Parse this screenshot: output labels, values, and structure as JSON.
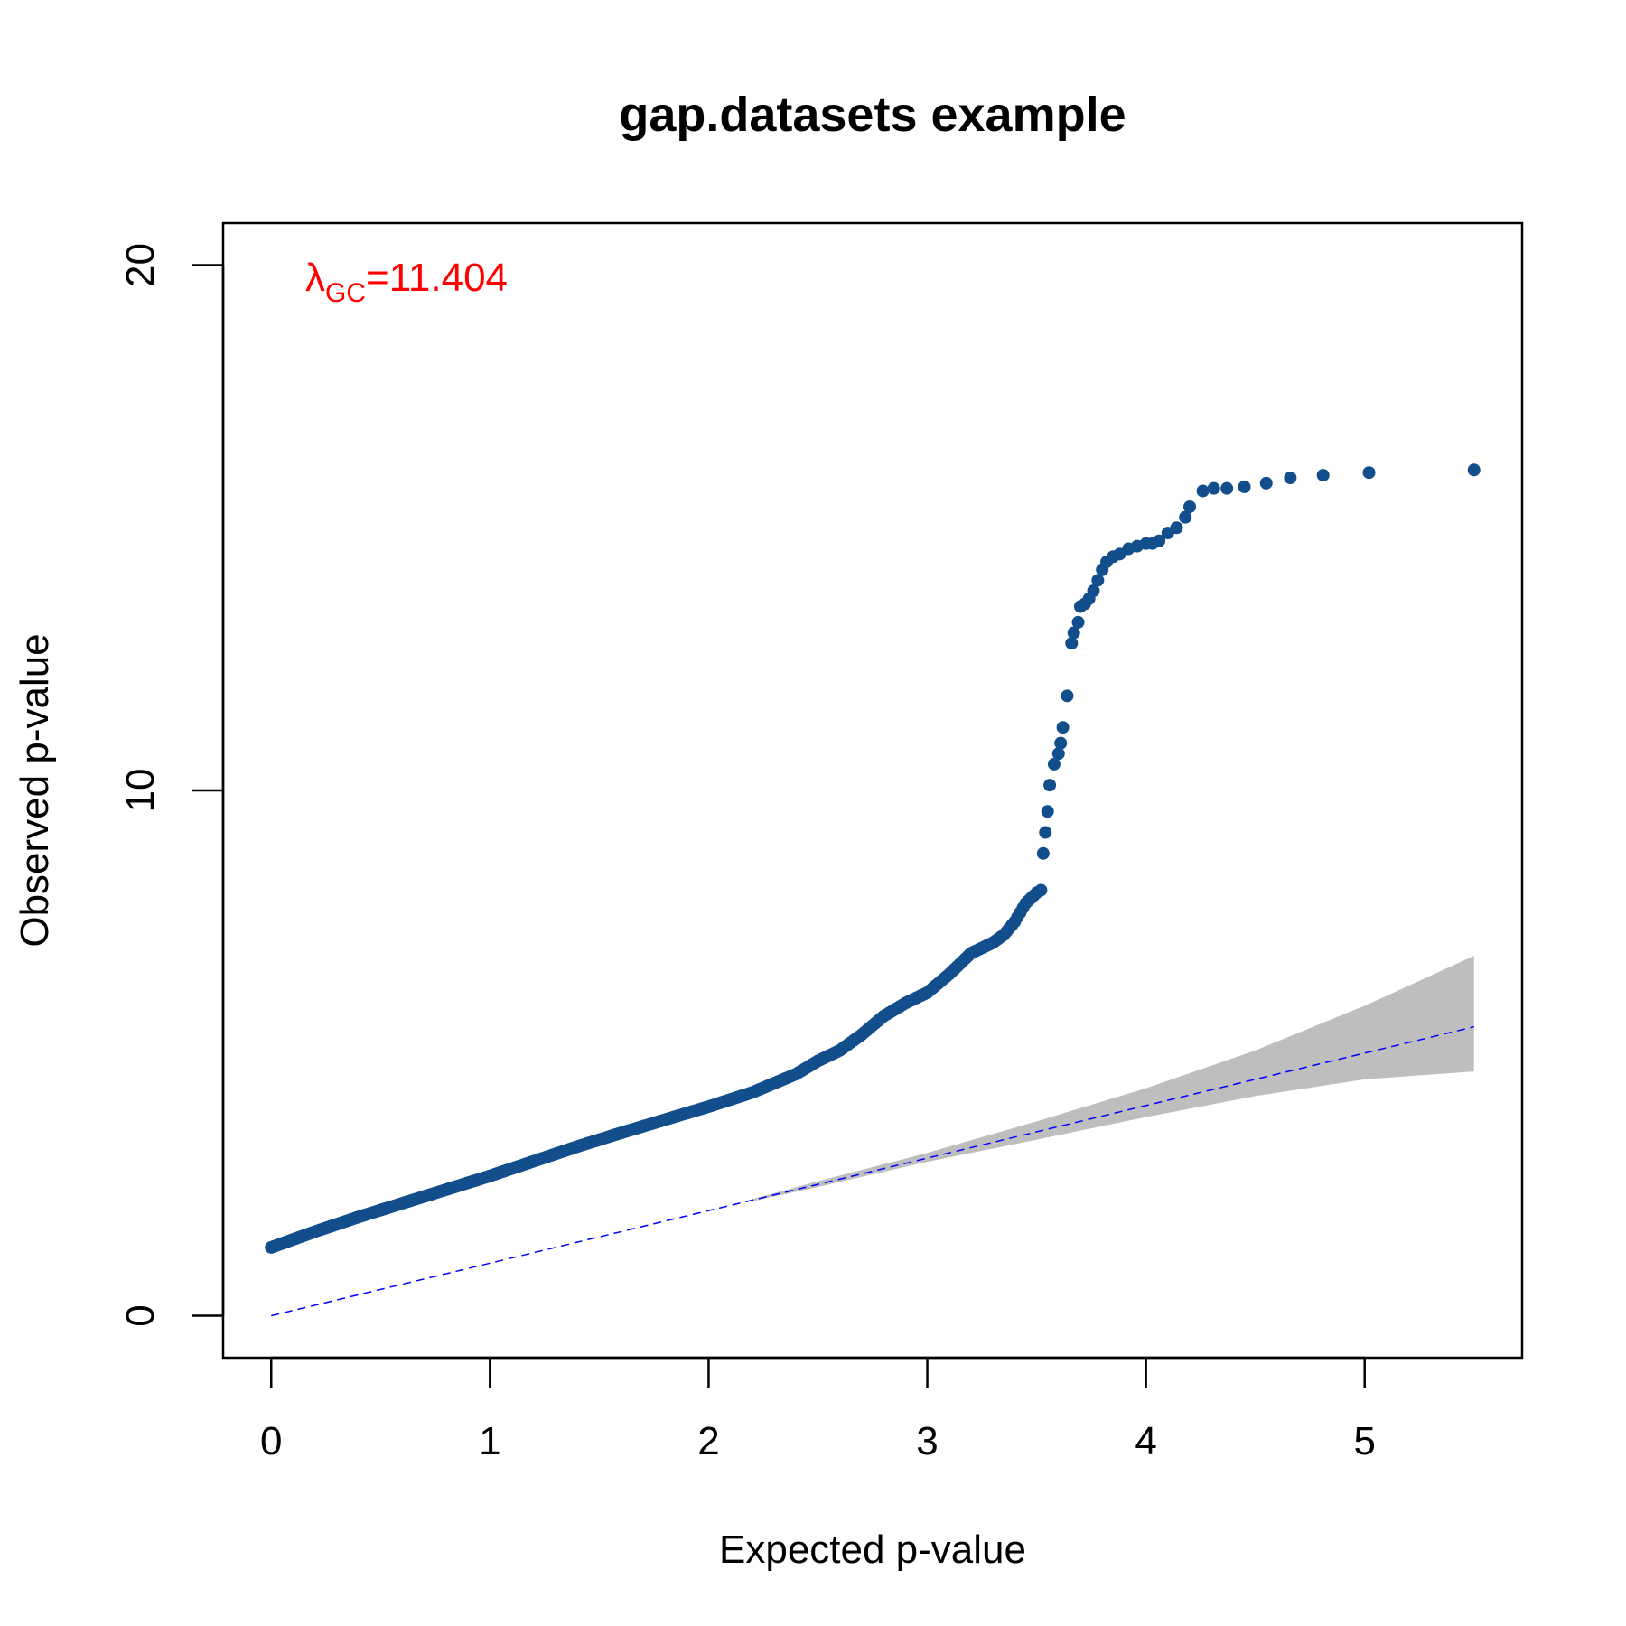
{
  "chart_data": {
    "type": "scatter",
    "title": "gap.datasets example",
    "xlabel": "Expected p-value",
    "ylabel": "Observed p-value",
    "xlim": [
      -0.22,
      5.72
    ],
    "ylim": [
      -0.8,
      20.8
    ],
    "x_ticks": [
      0,
      1,
      2,
      3,
      4,
      5
    ],
    "x_tick_labels": [
      "0",
      "1",
      "2",
      "3",
      "4",
      "5"
    ],
    "y_ticks": [
      0,
      10,
      20
    ],
    "y_tick_labels": [
      "0",
      "10",
      "20"
    ],
    "grid": false,
    "legend": "none",
    "point_color": "#134e8c",
    "reference_line_color": "#0000ff",
    "band_color": "#bebebe",
    "annotation": {
      "symbol": "λ",
      "subscript": "GC",
      "text": "=11.404",
      "color": "#ff0000"
    },
    "reference_line": {
      "x": [
        0,
        5.5
      ],
      "y": [
        0,
        5.5
      ]
    },
    "confidence_band": {
      "x": [
        2.2,
        2.5,
        3.0,
        3.5,
        4.0,
        4.5,
        5.0,
        5.5
      ],
      "upper": [
        2.22,
        2.56,
        3.1,
        3.7,
        4.33,
        5.05,
        5.9,
        6.85
      ],
      "lower": [
        2.18,
        2.45,
        2.93,
        3.35,
        3.78,
        4.18,
        4.5,
        4.65
      ]
    },
    "curve_series": {
      "name": "",
      "x": [
        0.0,
        0.2,
        0.4,
        0.6,
        0.8,
        1.0,
        1.2,
        1.4,
        1.6,
        1.8,
        2.0,
        2.2,
        2.4,
        2.5,
        2.6,
        2.7,
        2.8,
        2.9,
        3.0,
        3.1,
        3.2,
        3.3,
        3.35,
        3.4,
        3.45,
        3.5
      ],
      "y": [
        1.3,
        1.6,
        1.88,
        2.14,
        2.4,
        2.66,
        2.94,
        3.22,
        3.48,
        3.73,
        3.98,
        4.25,
        4.6,
        4.85,
        5.05,
        5.35,
        5.7,
        5.95,
        6.15,
        6.5,
        6.9,
        7.1,
        7.25,
        7.5,
        7.85,
        8.05
      ]
    },
    "tail_points": {
      "x": [
        3.52,
        3.53,
        3.54,
        3.55,
        3.56,
        3.58,
        3.6,
        3.61,
        3.62,
        3.64,
        3.66,
        3.67,
        3.69,
        3.7,
        3.72,
        3.74,
        3.76,
        3.78,
        3.8,
        3.82,
        3.85,
        3.88,
        3.92,
        3.96,
        4.0,
        4.03,
        4.06,
        4.1,
        4.14,
        4.18,
        4.2,
        4.26,
        4.31,
        4.37,
        4.45,
        4.55,
        4.66,
        4.81,
        5.02,
        5.5
      ],
      "y": [
        8.1,
        8.8,
        9.2,
        9.6,
        10.1,
        10.5,
        10.7,
        10.9,
        11.2,
        11.8,
        12.8,
        13.0,
        13.2,
        13.5,
        13.55,
        13.65,
        13.8,
        14.0,
        14.2,
        14.35,
        14.45,
        14.5,
        14.6,
        14.65,
        14.7,
        14.7,
        14.75,
        14.9,
        15.0,
        15.2,
        15.4,
        15.7,
        15.75,
        15.75,
        15.78,
        15.85,
        15.95,
        16.0,
        16.05,
        16.1
      ]
    }
  }
}
